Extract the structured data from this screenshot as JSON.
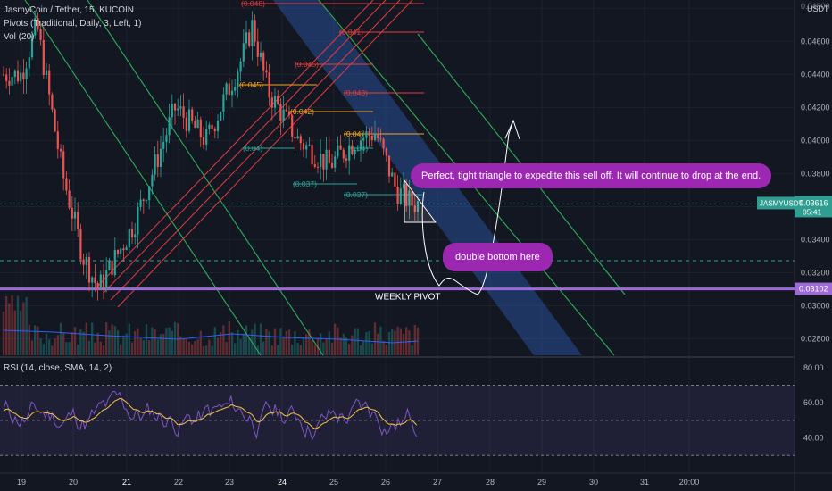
{
  "header": {
    "title": "JasmyCoin / Tether, 15, KUCOIN",
    "indicator_pivots": "Pivots (Traditional, Daily, 3, Left, 1)",
    "indicator_vol": "Vol (20)",
    "currency": "USDT"
  },
  "price_axis": {
    "ticks": [
      "0.04600",
      "0.04400",
      "0.04200",
      "0.04000",
      "0.03800",
      "0.03600",
      "0.03400",
      "0.03200",
      "0.03000",
      "0.02800"
    ],
    "top_partial": "0.04800",
    "symbol_badge": "JASMYUSDT",
    "current_price": "0.03616",
    "countdown": "05:41",
    "pivot_price": "0.03102",
    "colors": {
      "current": "#2f9e91",
      "pivot": "#9c6bd6"
    }
  },
  "pivot_labels": [
    "(0.048)",
    "(0.045)",
    "(0.045)",
    "(0.043)",
    "(0.042)",
    "(0.04)",
    "(0.04)",
    "(0.037)",
    "(0.037)",
    "(0.041)",
    "(0.04)"
  ],
  "annotations": {
    "weekly_pivot": "WEEKLY PIVOT",
    "callout_1": "Perfect, tight triangle to expedite this sell off. It will continue to drop at the end.",
    "callout_2": "double bottom here"
  },
  "rsi": {
    "title": "RSI (14, close, SMA, 14, 2)",
    "ticks": [
      "80.00",
      "60.00",
      "40.00"
    ]
  },
  "time_axis": [
    "19",
    "20",
    "21",
    "22",
    "23",
    "24",
    "25",
    "26",
    "27",
    "28",
    "29",
    "30",
    "31",
    "20:00"
  ],
  "chart_data": {
    "type": "candlestick",
    "symbol": "JASMYUSDT",
    "interval": "15",
    "exchange": "KUCOIN",
    "y_range": [
      0.027,
      0.0485
    ],
    "x_categories": [
      "19",
      "20",
      "21",
      "22",
      "23",
      "24",
      "25",
      "26",
      "27",
      "28",
      "29",
      "30",
      "31",
      "20:00"
    ],
    "last_price": 0.03616,
    "weekly_pivot": 0.03102,
    "rsi_range": [
      20,
      85
    ],
    "rsi_levels": [
      70,
      50,
      30
    ],
    "path_points": [
      {
        "day": 19.0,
        "price": 0.044
      },
      {
        "day": 19.3,
        "price": 0.047
      },
      {
        "day": 19.8,
        "price": 0.038
      },
      {
        "day": 20.2,
        "price": 0.033
      },
      {
        "day": 20.5,
        "price": 0.031
      },
      {
        "day": 21.2,
        "price": 0.035
      },
      {
        "day": 22.0,
        "price": 0.042
      },
      {
        "day": 22.6,
        "price": 0.04
      },
      {
        "day": 23.3,
        "price": 0.045
      },
      {
        "day": 23.5,
        "price": 0.047
      },
      {
        "day": 23.8,
        "price": 0.043
      },
      {
        "day": 24.4,
        "price": 0.04
      },
      {
        "day": 25.0,
        "price": 0.0385
      },
      {
        "day": 25.5,
        "price": 0.04
      },
      {
        "day": 25.9,
        "price": 0.0405
      },
      {
        "day": 26.3,
        "price": 0.037
      },
      {
        "day": 26.6,
        "price": 0.0362
      }
    ]
  }
}
